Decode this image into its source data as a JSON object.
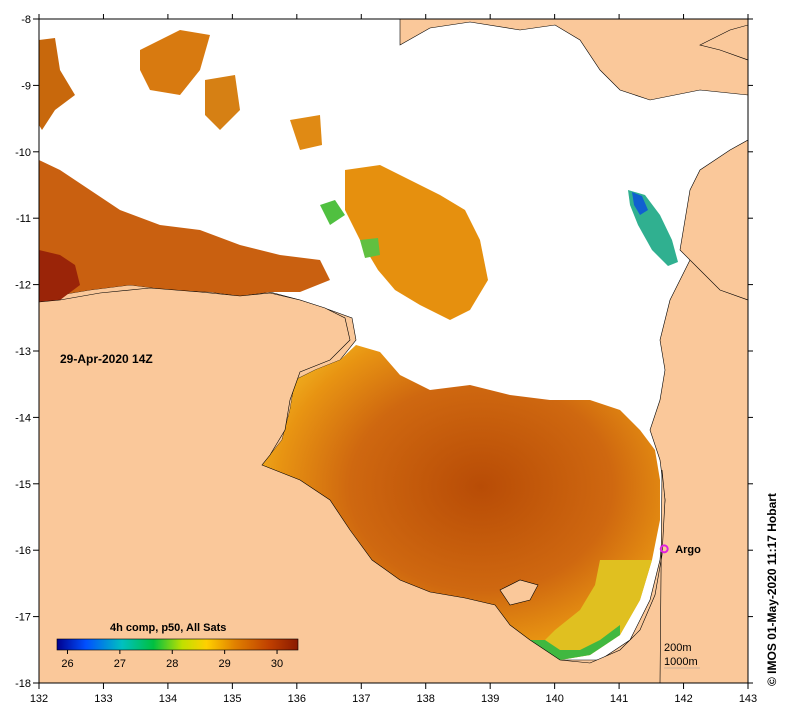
{
  "map": {
    "timestamp_label": "29-Apr-2020 14Z",
    "credit": "IMOS 01-May-2020 11:17 Hobart",
    "copyright_symbol": "©",
    "lon_ticks": [
      "132",
      "133",
      "134",
      "135",
      "136",
      "137",
      "138",
      "139",
      "140",
      "141",
      "142",
      "143"
    ],
    "lat_ticks": [
      "-8",
      "-9",
      "-10",
      "-11",
      "-12",
      "-13",
      "-14",
      "-15",
      "-16",
      "-17",
      "-18"
    ],
    "lon_range": [
      132,
      143
    ],
    "lat_range": [
      -18,
      -8
    ]
  },
  "colorbar": {
    "title": "4h comp, p50, All Sats",
    "range": [
      25.8,
      30.4
    ],
    "ticks": [
      "26",
      "27",
      "28",
      "29",
      "30"
    ],
    "stops": [
      "#00008f",
      "#0050ff",
      "#00c0c0",
      "#00c040",
      "#c0e000",
      "#ffd000",
      "#e08000",
      "#c04000",
      "#8a1a00"
    ]
  },
  "argo": {
    "label": "Argo",
    "lon": 141.7,
    "lat": -15.98,
    "color": "#e020e0"
  },
  "bathymetry_legend": {
    "line1": "200m",
    "line2": "1000m"
  },
  "colors": {
    "land": "#fac89a",
    "cloud": "#ffffff",
    "sst_warm": "#c85a0a",
    "sst_mid": "#e8900e",
    "sst_cool": "#3cb040"
  }
}
